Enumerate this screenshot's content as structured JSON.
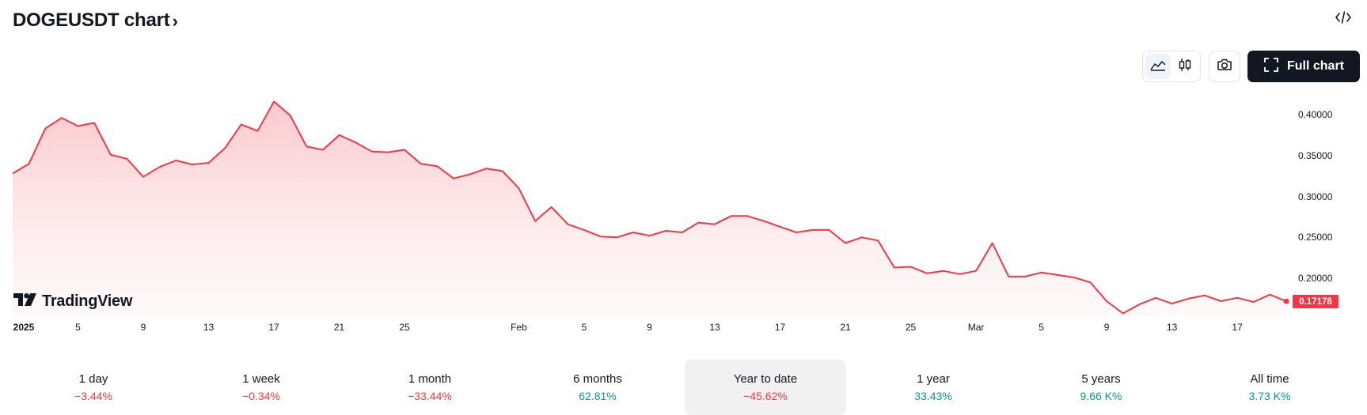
{
  "header": {
    "title": "DOGEUSDT chart",
    "title_chevron": "›",
    "embed_icon": "code-embed-icon"
  },
  "toolbar": {
    "area_chart_icon": "area-chart-icon",
    "candle_chart_icon": "candlestick-chart-icon",
    "snapshot_icon": "camera-icon",
    "full_chart_label": "Full chart",
    "full_chart_icon": "expand-icon",
    "active_style": "area"
  },
  "branding": {
    "logo_text": "TradingView"
  },
  "colors": {
    "line": "#f23645",
    "fill_top": "#fbc8cc",
    "negative": "#f23645",
    "positive": "#089981",
    "button_dark": "#131722"
  },
  "chart_data": {
    "type": "area",
    "symbol": "DOGEUSDT",
    "y_ticks": [
      "0.40000",
      "0.35000",
      "0.30000",
      "0.25000",
      "0.20000"
    ],
    "ylim": [
      0.152,
      0.42
    ],
    "x_ticks": [
      "2025",
      "5",
      "9",
      "13",
      "17",
      "21",
      "25",
      "Feb",
      "5",
      "9",
      "13",
      "17",
      "21",
      "25",
      "Mar",
      "5",
      "9",
      "13",
      "17"
    ],
    "last_price": "0.17178",
    "x": [
      "2025-01-01",
      "2025-01-02",
      "2025-01-03",
      "2025-01-04",
      "2025-01-05",
      "2025-01-06",
      "2025-01-07",
      "2025-01-08",
      "2025-01-09",
      "2025-01-10",
      "2025-01-11",
      "2025-01-12",
      "2025-01-13",
      "2025-01-14",
      "2025-01-15",
      "2025-01-16",
      "2025-01-17",
      "2025-01-18",
      "2025-01-19",
      "2025-01-20",
      "2025-01-21",
      "2025-01-22",
      "2025-01-23",
      "2025-01-24",
      "2025-01-25",
      "2025-01-26",
      "2025-01-27",
      "2025-01-28",
      "2025-01-29",
      "2025-01-30",
      "2025-01-31",
      "2025-02-01",
      "2025-02-02",
      "2025-02-03",
      "2025-02-04",
      "2025-02-05",
      "2025-02-06",
      "2025-02-07",
      "2025-02-08",
      "2025-02-09",
      "2025-02-10",
      "2025-02-11",
      "2025-02-12",
      "2025-02-13",
      "2025-02-14",
      "2025-02-15",
      "2025-02-16",
      "2025-02-17",
      "2025-02-18",
      "2025-02-19",
      "2025-02-20",
      "2025-02-21",
      "2025-02-22",
      "2025-02-23",
      "2025-02-24",
      "2025-02-25",
      "2025-02-26",
      "2025-02-27",
      "2025-02-28",
      "2025-03-01",
      "2025-03-02",
      "2025-03-03",
      "2025-03-04",
      "2025-03-05",
      "2025-03-06",
      "2025-03-07",
      "2025-03-08",
      "2025-03-09",
      "2025-03-10",
      "2025-03-11",
      "2025-03-12",
      "2025-03-13",
      "2025-03-14",
      "2025-03-15",
      "2025-03-16",
      "2025-03-17",
      "2025-03-18",
      "2025-03-19",
      "2025-03-20"
    ],
    "values": [
      0.328,
      0.34,
      0.383,
      0.396,
      0.386,
      0.39,
      0.351,
      0.346,
      0.324,
      0.336,
      0.344,
      0.339,
      0.341,
      0.359,
      0.388,
      0.38,
      0.416,
      0.399,
      0.361,
      0.357,
      0.375,
      0.366,
      0.355,
      0.354,
      0.357,
      0.34,
      0.337,
      0.322,
      0.327,
      0.334,
      0.331,
      0.31,
      0.27,
      0.287,
      0.266,
      0.259,
      0.251,
      0.25,
      0.256,
      0.252,
      0.258,
      0.256,
      0.268,
      0.266,
      0.276,
      0.276,
      0.27,
      0.263,
      0.256,
      0.259,
      0.259,
      0.243,
      0.25,
      0.246,
      0.213,
      0.214,
      0.206,
      0.209,
      0.205,
      0.209,
      0.243,
      0.202,
      0.202,
      0.207,
      0.204,
      0.201,
      0.195,
      0.172,
      0.157,
      0.168,
      0.176,
      0.169,
      0.175,
      0.179,
      0.172,
      0.176,
      0.171,
      0.18,
      0.17178
    ]
  },
  "periods": [
    {
      "label": "1 day",
      "value": "−3.44%",
      "dir": "neg"
    },
    {
      "label": "1 week",
      "value": "−0.34%",
      "dir": "neg"
    },
    {
      "label": "1 month",
      "value": "−33.44%",
      "dir": "neg"
    },
    {
      "label": "6 months",
      "value": "62.81%",
      "dir": "pos"
    },
    {
      "label": "Year to date",
      "value": "−45.62%",
      "dir": "neg",
      "active": true
    },
    {
      "label": "1 year",
      "value": "33.43%",
      "dir": "pos"
    },
    {
      "label": "5 years",
      "value": "9.66 K%",
      "dir": "pos"
    },
    {
      "label": "All time",
      "value": "3.73 K%",
      "dir": "pos"
    }
  ]
}
